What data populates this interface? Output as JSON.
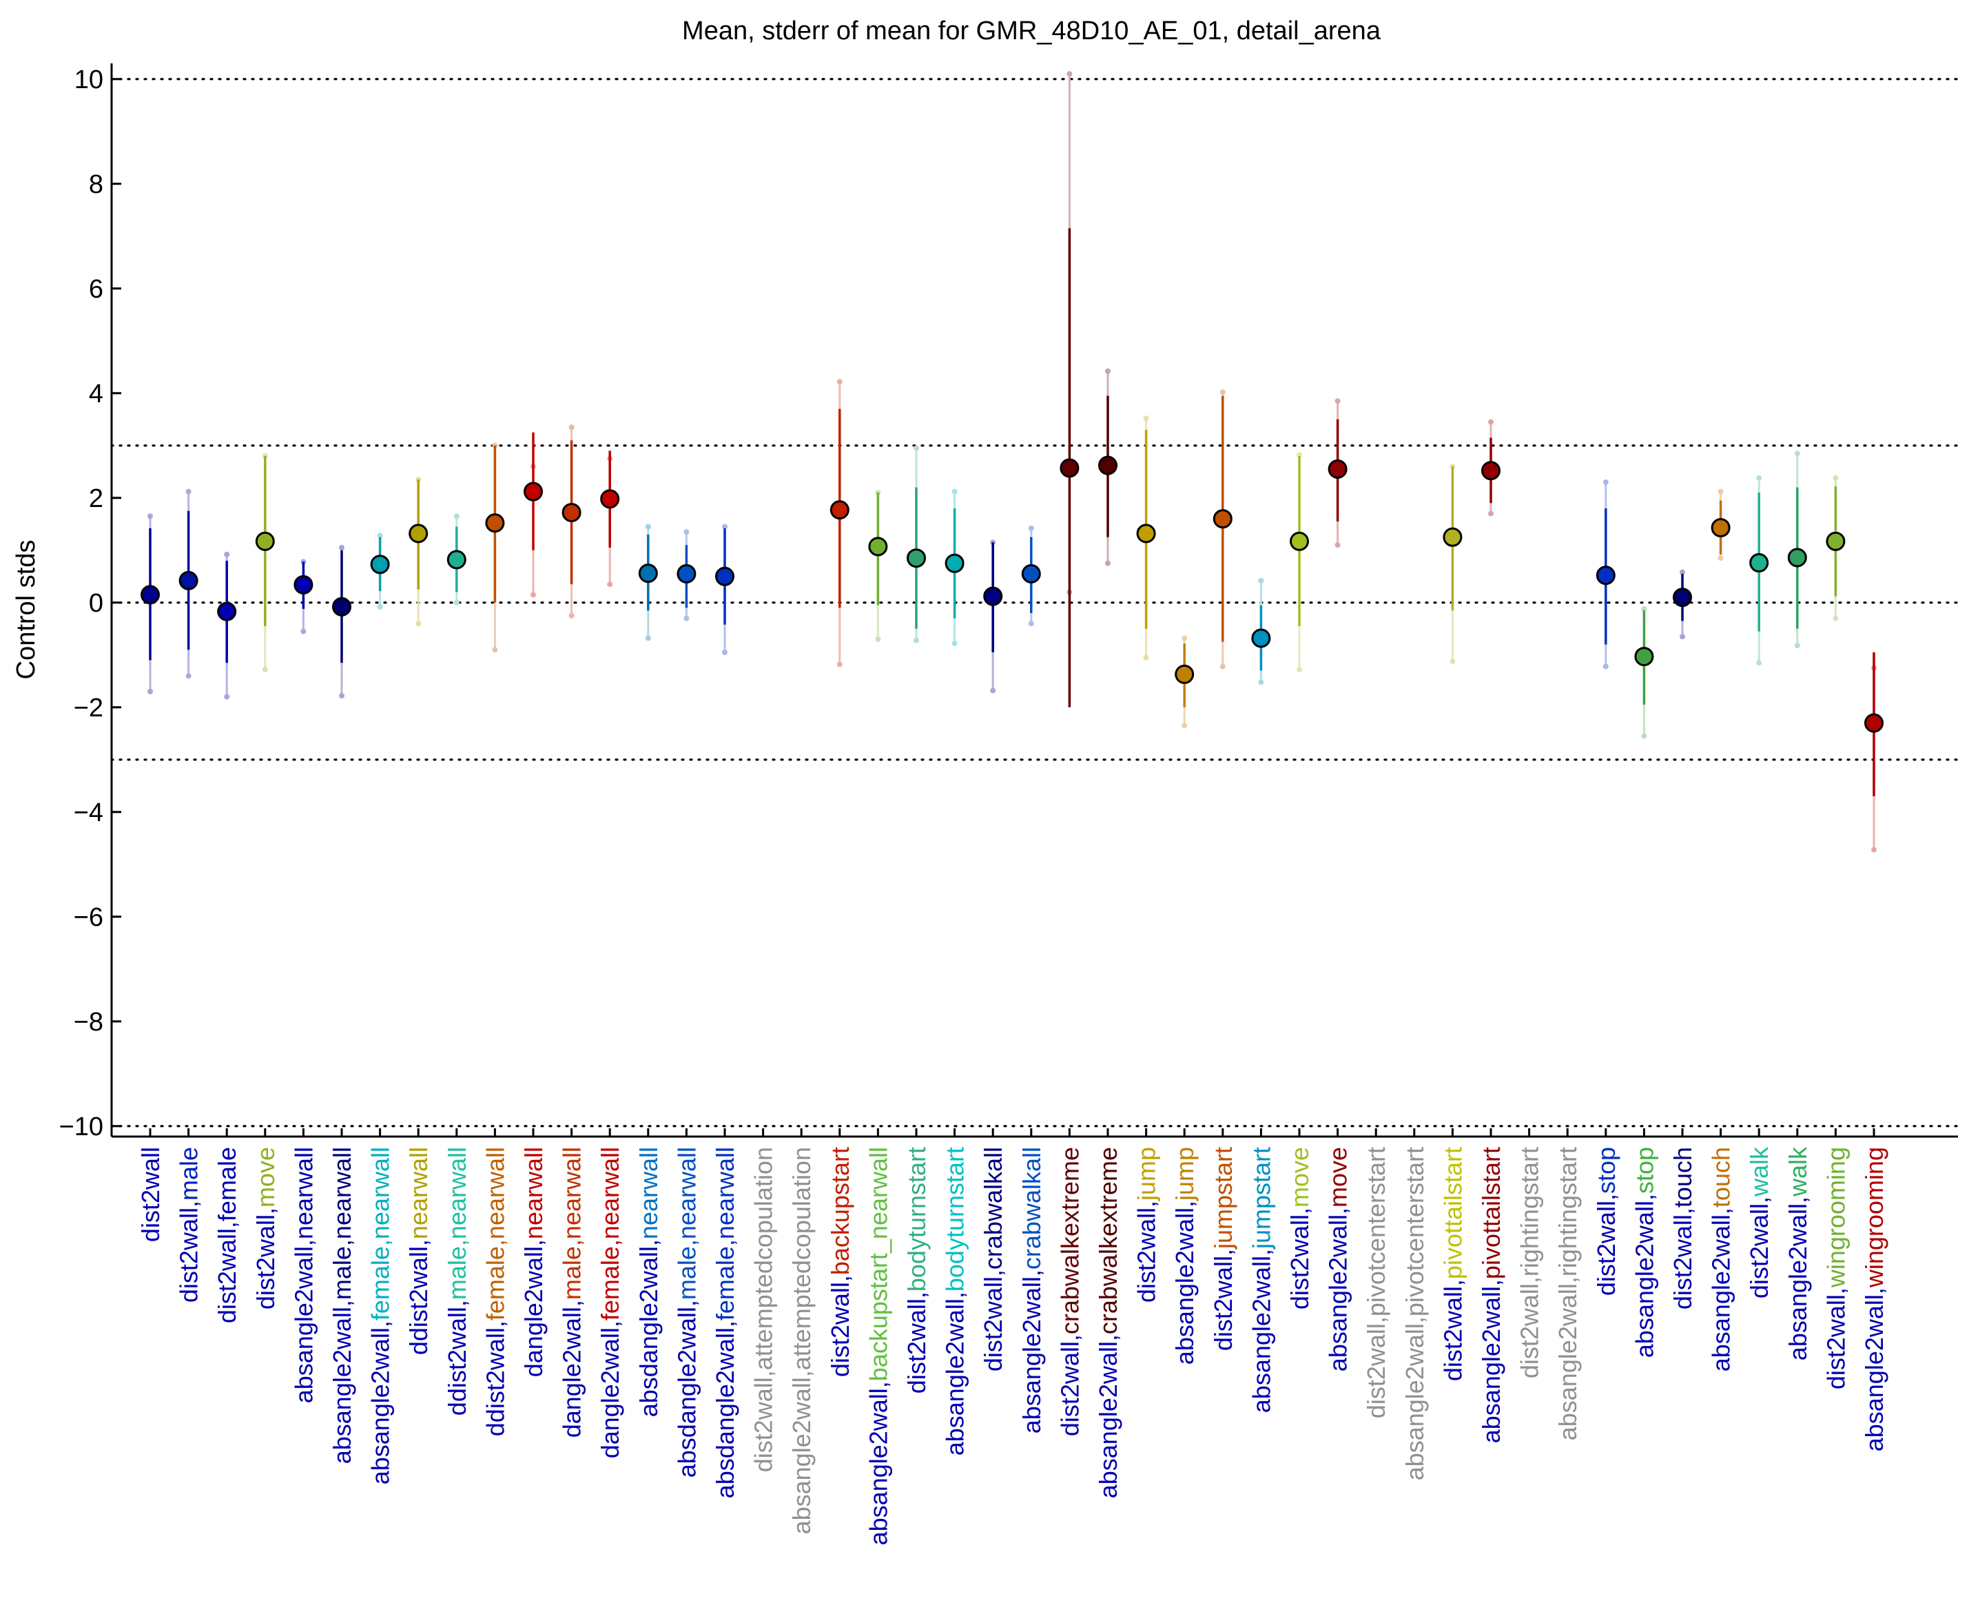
{
  "chart_data": {
    "type": "scatter",
    "title": "Mean, stderr of mean for GMR_48D10_AE_01, detail_arena",
    "xlabel": "",
    "ylabel": "Control stds",
    "ylim": [
      -10.2,
      10.3
    ],
    "yticks": [
      10,
      8,
      6,
      4,
      2,
      0,
      -2,
      -4,
      -6,
      -8,
      -10
    ],
    "ytick_labels": [
      "10",
      "8",
      "6",
      "4",
      "2",
      "0",
      "−2",
      "−4",
      "−6",
      "−8",
      "−10"
    ],
    "reference_lines": [
      10,
      3,
      0,
      -3,
      -10
    ],
    "grid": false,
    "categories": [
      "dist2wall",
      "dist2wall,male",
      "dist2wall,female",
      "dist2wall,move",
      "absangle2wall,nearwall",
      "absangle2wall,male,nearwall",
      "absangle2wall,female,nearwall",
      "ddist2wall,nearwall",
      "ddist2wall,male,nearwall",
      "ddist2wall,female,nearwall",
      "dangle2wall,nearwall",
      "dangle2wall,male,nearwall",
      "dangle2wall,female,nearwall",
      "absdangle2wall,nearwall",
      "absdangle2wall,male,nearwall",
      "absdangle2wall,female,nearwall",
      "dist2wall,attemptedcopulation",
      "absangle2wall,attemptedcopulation",
      "dist2wall,backupstart",
      "absangle2wall,backupstart_nearwall",
      "dist2wall,bodyturnstart",
      "absangle2wall,bodyturnstart",
      "dist2wall,crabwalkall",
      "absangle2wall,crabwalkall",
      "dist2wall,crabwalkextreme",
      "absangle2wall,crabwalkextreme",
      "dist2wall,jump",
      "absangle2wall,jump",
      "dist2wall,jumpstart",
      "absangle2wall,jumpstart",
      "dist2wall,move",
      "absangle2wall,move",
      "dist2wall,pivotcenterstart",
      "absangle2wall,pivotcenterstart",
      "dist2wall,pivottailstart",
      "absangle2wall,pivottailstart",
      "dist2wall,rightingstart",
      "absangle2wall,rightingstart",
      "dist2wall,stop",
      "absangle2wall,stop",
      "dist2wall,touch",
      "absangle2wall,touch",
      "dist2wall,walk",
      "absangle2wall,walk",
      "dist2wall,wingrooming",
      "absangle2wall,wingrooming"
    ],
    "label_prefix_color": "#0000b0",
    "label_suffix_colors": [
      null,
      "#0020c0",
      "#0000b0",
      "#90b020",
      "#0000b0",
      "#000080",
      "#00b0c0",
      "#b0a000",
      "#20c0a0",
      "#c06000",
      "#c00000",
      "#c03000",
      "#c00000",
      "#0070c0",
      "#0050c0",
      "#0030c0",
      "#909090",
      "#909090",
      "#c02000",
      "#60c040",
      "#30b080",
      "#00c0c0",
      "#000080",
      "#0050c0",
      "#600000",
      "#500000",
      "#c0a000",
      "#c08000",
      "#c05000",
      "#0090c0",
      "#a0c020",
      "#900000",
      "#909090",
      "#909090",
      "#c0c000",
      "#900000",
      "#909090",
      "#909090",
      "#0030c0",
      "#40b040",
      "#000080",
      "#c07000",
      "#20c0a0",
      "#30b060",
      "#70b030",
      "#b00000"
    ],
    "series": [
      {
        "mean": [
          0.15,
          0.42,
          -0.17,
          1.17,
          0.34,
          -0.08,
          0.73,
          1.32,
          0.82,
          1.52,
          2.12,
          1.72,
          1.98,
          0.56,
          0.55,
          0.5,
          null,
          null,
          1.77,
          1.07,
          0.85,
          0.75,
          0.12,
          0.55,
          2.57,
          2.62,
          1.32,
          -1.37,
          1.6,
          -0.68,
          1.17,
          2.55,
          null,
          null,
          1.25,
          2.52,
          null,
          null,
          0.52,
          -1.03,
          0.1,
          1.43,
          0.76,
          0.86,
          1.17,
          -2.3
        ],
        "err_low": [
          -1.1,
          -0.9,
          -1.15,
          -0.45,
          -0.12,
          -1.15,
          0.22,
          0.25,
          0.2,
          0.0,
          1.0,
          0.35,
          1.05,
          -0.15,
          -0.1,
          -0.42,
          null,
          null,
          -0.1,
          -0.05,
          -0.5,
          -0.3,
          -0.95,
          -0.2,
          -2.0,
          1.25,
          -0.5,
          -2.0,
          -0.75,
          -1.3,
          -0.45,
          1.55,
          null,
          null,
          -0.15,
          1.9,
          null,
          null,
          -0.8,
          -1.95,
          -0.35,
          0.92,
          -0.55,
          -0.5,
          0.12,
          -3.7
        ],
        "err_high": [
          1.42,
          1.75,
          0.8,
          2.8,
          0.78,
          1.0,
          1.25,
          2.35,
          1.45,
          3.0,
          3.25,
          3.1,
          2.9,
          1.3,
          1.1,
          1.42,
          null,
          null,
          3.7,
          2.1,
          2.2,
          1.8,
          1.15,
          1.25,
          7.15,
          3.95,
          3.3,
          -0.78,
          3.95,
          -0.05,
          2.8,
          3.5,
          null,
          null,
          2.6,
          3.15,
          null,
          null,
          1.8,
          -0.15,
          0.55,
          1.95,
          2.1,
          2.2,
          2.22,
          -0.95
        ],
        "range_low": [
          -1.7,
          -1.4,
          -1.8,
          -1.28,
          -0.55,
          -1.78,
          -0.08,
          -0.4,
          0.0,
          -0.9,
          0.15,
          -0.25,
          0.35,
          -0.68,
          -0.3,
          -0.95,
          null,
          null,
          -1.18,
          -0.7,
          -0.72,
          -0.78,
          -1.68,
          -0.4,
          0.2,
          0.75,
          -1.05,
          -2.35,
          -1.22,
          -1.52,
          -1.28,
          1.1,
          null,
          null,
          -1.12,
          1.7,
          null,
          null,
          -1.22,
          -2.55,
          -0.65,
          0.85,
          -1.15,
          -0.82,
          -0.3,
          -4.72
        ],
        "range_high": [
          1.65,
          2.12,
          0.92,
          2.8,
          0.78,
          1.05,
          1.28,
          2.35,
          1.65,
          3.0,
          2.6,
          3.35,
          2.75,
          1.45,
          1.35,
          1.45,
          null,
          null,
          4.22,
          2.1,
          2.95,
          2.12,
          1.15,
          1.42,
          10.1,
          4.42,
          3.52,
          -0.68,
          4.02,
          0.42,
          2.82,
          3.85,
          null,
          null,
          2.6,
          3.45,
          null,
          null,
          2.3,
          -0.12,
          0.58,
          2.12,
          2.38,
          2.85,
          2.38,
          -1.25
        ],
        "marker_colors": [
          "#000090",
          "#0010a0",
          "#0000b0",
          "#90b020",
          "#0000b0",
          "#000070",
          "#00a0b0",
          "#b0a000",
          "#20b090",
          "#c05000",
          "#c00000",
          "#c03000",
          "#c00000",
          "#0070b0",
          "#0050c0",
          "#0030c0",
          null,
          null,
          "#c02000",
          "#70b030",
          "#30a070",
          "#00b0b0",
          "#000080",
          "#0050c0",
          "#600000",
          "#500000",
          "#c0a000",
          "#c08000",
          "#c05000",
          "#0090c0",
          "#a0c020",
          "#900000",
          null,
          null,
          "#b0b020",
          "#900000",
          null,
          null,
          "#0030c0",
          "#40a040",
          "#000070",
          "#c07000",
          "#20b090",
          "#30a060",
          "#80b030",
          "#b00000"
        ]
      }
    ]
  }
}
